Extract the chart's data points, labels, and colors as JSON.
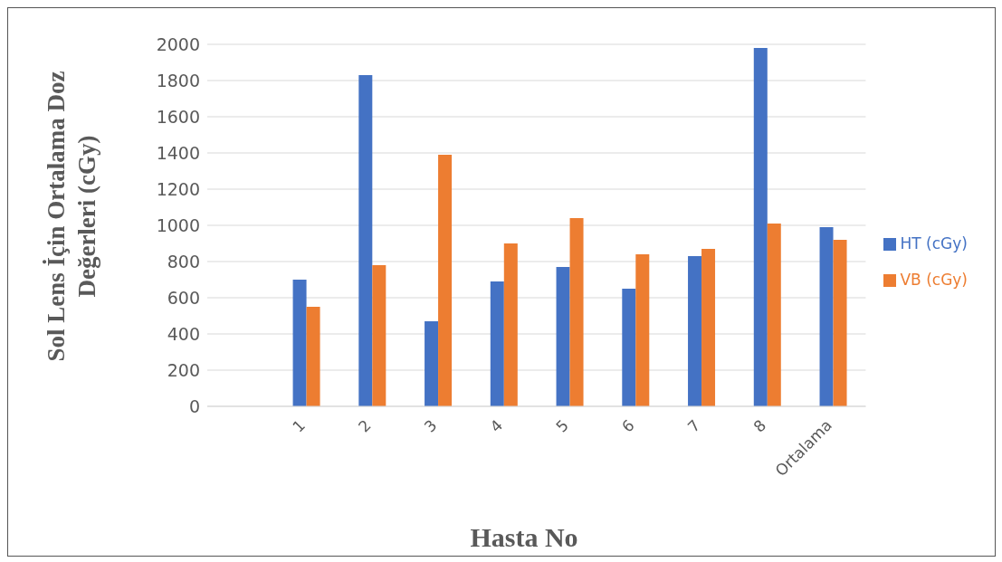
{
  "chart_data": {
    "type": "bar",
    "xlabel": "Hasta No",
    "ylabel": "Sol Lens İçin Ortalama Doz Değerleri (cGy)",
    "categories": [
      null,
      "1",
      "2",
      "3",
      "4",
      "5",
      "6",
      "7",
      "8",
      "Ortalama"
    ],
    "series": [
      {
        "name": "HT (cGy)",
        "color": "#4472c4",
        "values": [
          null,
          700,
          1830,
          470,
          690,
          770,
          650,
          830,
          1980,
          990
        ]
      },
      {
        "name": "VB (cGy)",
        "color": "#ed7d31",
        "values": [
          null,
          550,
          780,
          1390,
          900,
          1040,
          840,
          870,
          1010,
          920
        ]
      }
    ],
    "ylim": [
      0,
      2000
    ],
    "yticks": [
      0,
      200,
      400,
      600,
      800,
      1000,
      1200,
      1400,
      1600,
      1800,
      2000
    ],
    "grid": "y",
    "legend": "right"
  }
}
